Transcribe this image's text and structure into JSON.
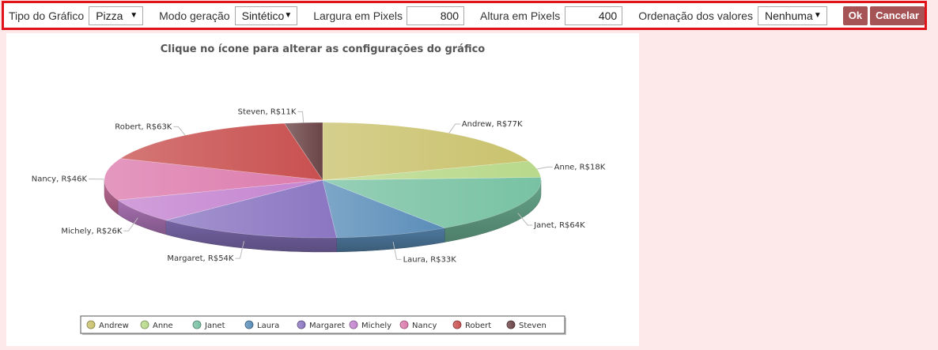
{
  "toolbar": {
    "chart_type_label": "Tipo do Gráfico",
    "chart_type_value": "Pizza",
    "mode_label": "Modo geração",
    "mode_value": "Sintético",
    "width_label": "Largura em Pixels",
    "width_value": "800",
    "height_label": "Altura em Pixels",
    "height_value": "400",
    "sort_label": "Ordenação dos valores",
    "sort_value": "Nenhuma",
    "ok_label": "Ok",
    "cancel_label": "Cancelar"
  },
  "chart_data": {
    "type": "pie",
    "title": "Clique no ícone para alterar as configurações do gráfico",
    "categories": [
      "Andrew",
      "Anne",
      "Janet",
      "Laura",
      "Margaret",
      "Michely",
      "Nancy",
      "Robert",
      "Steven"
    ],
    "values": [
      77,
      18,
      64,
      33,
      54,
      26,
      46,
      63,
      11
    ],
    "data_labels": [
      "Andrew, R$77K",
      "Anne, R$18K",
      "Janet, R$64K",
      "Laura, R$33K",
      "Margaret, R$54K",
      "Michely, R$26K",
      "Nancy, R$46K",
      "Robert, R$63K",
      "Steven, R$11K"
    ],
    "colors": [
      "#c9c26d",
      "#b8d98a",
      "#78c2a3",
      "#5a8db9",
      "#8a76c2",
      "#c484cf",
      "#dc7bad",
      "#c8504f",
      "#6b4446"
    ],
    "legend_placement": "bottom",
    "three_d": true
  }
}
